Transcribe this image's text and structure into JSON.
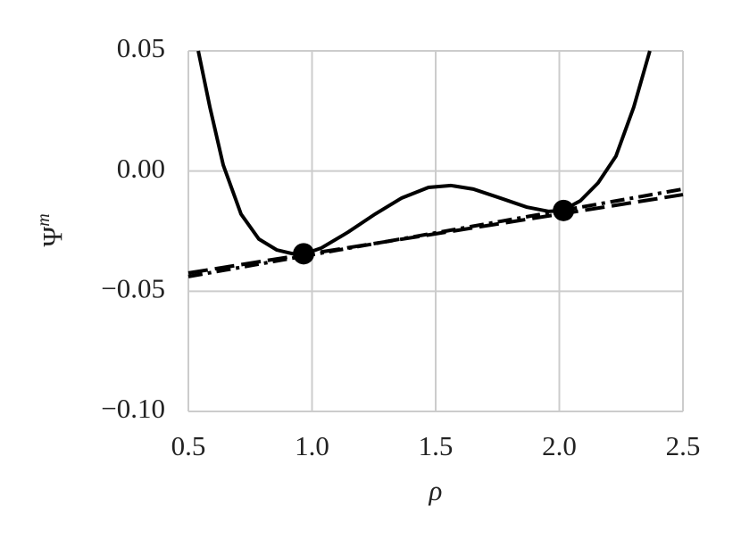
{
  "chart_data": {
    "type": "line",
    "xlabel": "ρ",
    "ylabel": {
      "base": "Ψ",
      "sup": "m"
    },
    "xlim": [
      0.5,
      2.5
    ],
    "ylim": [
      -0.1,
      0.05
    ],
    "xticks": [
      {
        "value": 0.5,
        "label": "0.5"
      },
      {
        "value": 1.0,
        "label": "1.0"
      },
      {
        "value": 1.5,
        "label": "1.5"
      },
      {
        "value": 2.0,
        "label": "2.0"
      },
      {
        "value": 2.5,
        "label": "2.5"
      }
    ],
    "yticks": [
      {
        "value": -0.1,
        "label": "−0.10"
      },
      {
        "value": -0.05,
        "label": "−0.05"
      },
      {
        "value": 0.0,
        "label": "0.00"
      },
      {
        "value": 0.05,
        "label": "0.05"
      }
    ],
    "grid": true,
    "series": [
      {
        "style": "solid",
        "color": "#000000",
        "x": [
          0.54,
          0.587,
          0.641,
          0.713,
          0.785,
          0.857,
          0.93,
          0.966,
          1.038,
          1.146,
          1.255,
          1.363,
          1.471,
          1.561,
          1.652,
          1.76,
          1.868,
          1.958,
          2.013,
          2.085,
          2.157,
          2.229,
          2.301,
          2.366
        ],
        "values": [
          0.05,
          0.0266,
          0.0025,
          -0.0179,
          -0.0283,
          -0.0328,
          -0.0346,
          -0.0346,
          -0.032,
          -0.0254,
          -0.0179,
          -0.0112,
          -0.0068,
          -0.006,
          -0.0075,
          -0.0112,
          -0.015,
          -0.0168,
          -0.0164,
          -0.0124,
          -0.0049,
          0.0062,
          0.0266,
          0.05
        ]
      },
      {
        "style": "dashed",
        "color": "#000000",
        "x": [
          0.5,
          2.5
        ],
        "values": [
          -0.0424,
          -0.0098
        ]
      },
      {
        "style": "dashdot",
        "color": "#000000",
        "x": [
          0.5,
          2.5
        ],
        "values": [
          -0.0439,
          -0.0075
        ]
      },
      {
        "style": "points",
        "color": "#000000",
        "x": [
          0.966,
          2.017
        ],
        "values": [
          -0.0344,
          -0.0164
        ]
      }
    ]
  }
}
